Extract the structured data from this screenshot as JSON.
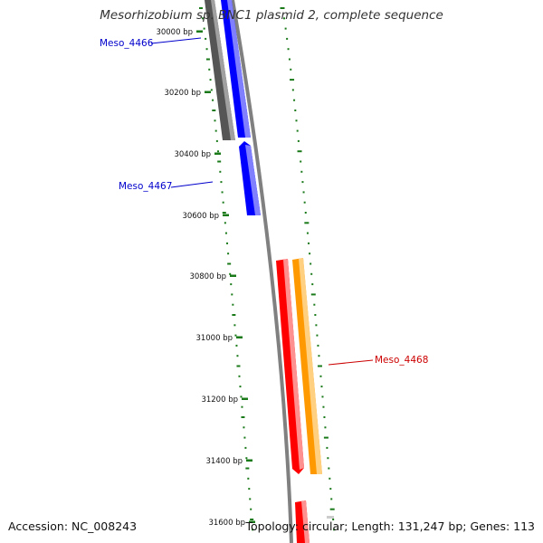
{
  "title": "Mesorhizobium sp. BNC1 plasmid 2, complete sequence",
  "footer": {
    "accession": "Accession: NC_008243",
    "summary": "Topology: circular; Length: 131,247 bp; Genes: 113"
  },
  "axis": {
    "labels": [
      "30000 bp",
      "30200 bp",
      "30400 bp",
      "30600 bp",
      "30800 bp",
      "31000 bp",
      "31200 bp",
      "31400 bp",
      "31600 bp"
    ]
  },
  "genes": [
    {
      "label": "Meso_4466",
      "color": "#0000cc"
    },
    {
      "label": "Meso_4467",
      "color": "#0000cc"
    },
    {
      "label": "Meso_4468",
      "color": "#cc0000"
    }
  ],
  "colors": {
    "forward_gene": "#0000ff",
    "forward_gene_light": "#8080ff",
    "gray_gene": "#555555",
    "gray_gene_light": "#a0a0a0",
    "reverse_gene": "#ff0000",
    "reverse_gene_light": "#ff9090",
    "orange_gene": "#ff9900",
    "orange_gene_light": "#ffd080",
    "backbone": "#808080",
    "tick": "#1a7a1a"
  }
}
